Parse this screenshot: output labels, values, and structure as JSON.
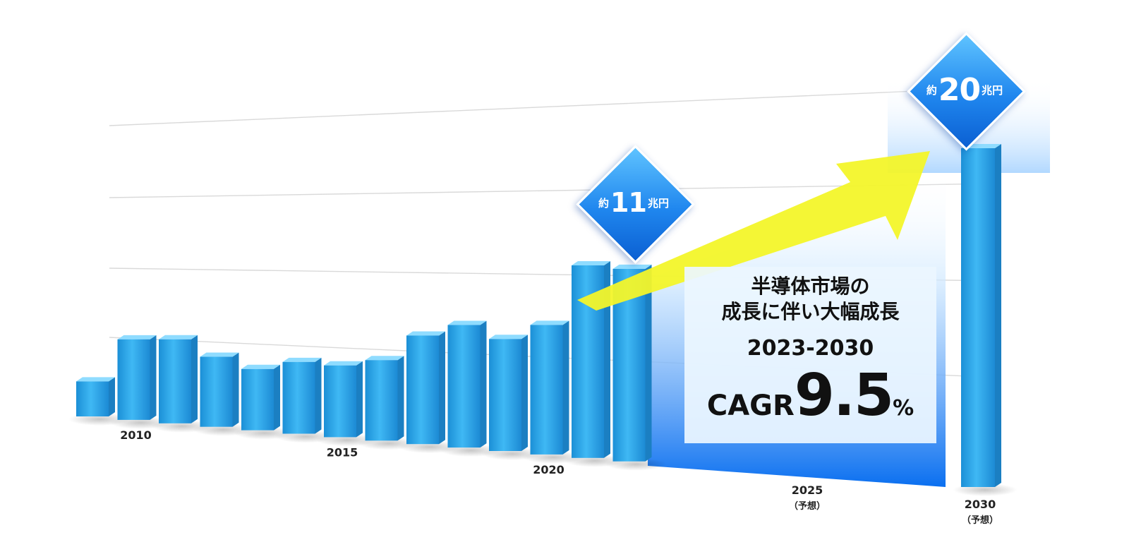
{
  "chart_data": {
    "type": "bar",
    "title": "",
    "xlabel": "",
    "ylabel": "",
    "ylim": [
      0,
      22
    ],
    "grid": true,
    "bar_color": "#2aa6ea",
    "bar_side_color": "#1b7fc2",
    "bar_top_color": "#8fdcff",
    "arrow_color": "#f3f52a",
    "points": [
      {
        "year": 2009,
        "value": 2.0,
        "label": "",
        "sub": ""
      },
      {
        "year": 2010,
        "value": 4.6,
        "label": "2010",
        "sub": ""
      },
      {
        "year": 2011,
        "value": 4.8,
        "label": "",
        "sub": ""
      },
      {
        "year": 2012,
        "value": 4.0,
        "label": "",
        "sub": ""
      },
      {
        "year": 2013,
        "value": 3.5,
        "label": "",
        "sub": ""
      },
      {
        "year": 2014,
        "value": 4.1,
        "label": "",
        "sub": ""
      },
      {
        "year": 2015,
        "value": 4.1,
        "label": "2015",
        "sub": ""
      },
      {
        "year": 2016,
        "value": 4.6,
        "label": "",
        "sub": ""
      },
      {
        "year": 2017,
        "value": 6.2,
        "label": "",
        "sub": ""
      },
      {
        "year": 2018,
        "value": 7.0,
        "label": "",
        "sub": ""
      },
      {
        "year": 2019,
        "value": 6.4,
        "label": "",
        "sub": ""
      },
      {
        "year": 2020,
        "value": 7.4,
        "label": "2020",
        "sub": ""
      },
      {
        "year": 2021,
        "value": 11.0,
        "label": "",
        "sub": ""
      },
      {
        "year": 2022,
        "value": 11.0,
        "label": "",
        "sub": ""
      },
      {
        "year": 2025,
        "value": null,
        "label": "2025",
        "sub": "（予想）"
      },
      {
        "year": 2030,
        "value": 20.0,
        "label": "2030",
        "sub": "（予想）"
      }
    ],
    "annotations": [
      {
        "pre": "約",
        "num": "11",
        "unit": "兆円"
      },
      {
        "pre": "約",
        "num": "20",
        "unit": "兆円"
      }
    ],
    "callout": {
      "title_line1": "半導体市場の",
      "title_line2": "成長に伴い大幅成長",
      "period": "2023-2030",
      "cagr_label": "CAGR",
      "cagr_value": "9.5",
      "cagr_unit": "%"
    }
  }
}
